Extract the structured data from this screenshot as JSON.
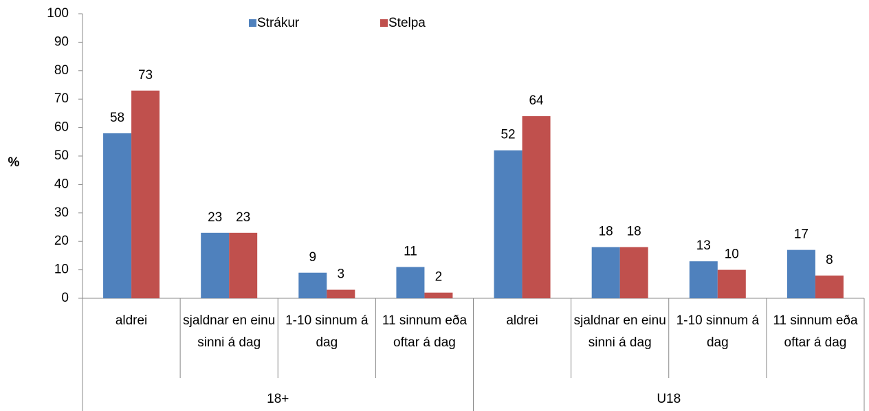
{
  "chart_data": {
    "type": "bar",
    "ylabel": "%",
    "categories": [
      "aldrei",
      "sjaldnar en einu sinni á dag",
      "1-10 sinnum á dag",
      "11 sinnum eða oftar á dag",
      "aldrei",
      "sjaldnar en einu sinni á dag",
      "1-10 sinnum á dag",
      "11 sinnum eða oftar á dag"
    ],
    "groups": [
      "18+",
      "U18"
    ],
    "series": [
      {
        "name": "Strákur",
        "color": "#4f81bd",
        "values": [
          58,
          23,
          9,
          11,
          52,
          18,
          13,
          17
        ]
      },
      {
        "name": "Stelpa",
        "color": "#c0504d",
        "values": [
          73,
          23,
          3,
          2,
          64,
          18,
          10,
          8
        ]
      }
    ],
    "ylim": [
      0,
      100
    ],
    "yticks": [
      0,
      10,
      20,
      30,
      40,
      50,
      60,
      70,
      80,
      90,
      100
    ],
    "legend": "top",
    "grid": false
  }
}
